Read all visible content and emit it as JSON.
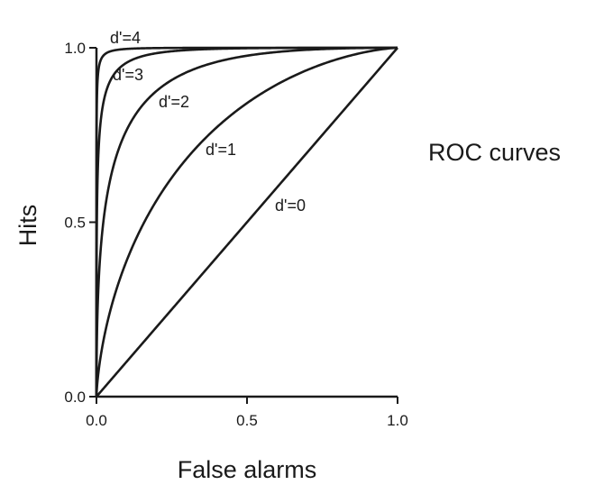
{
  "chart_data": {
    "type": "line",
    "title": "",
    "side_label": "ROC curves",
    "xlabel": "False alarms",
    "ylabel": "Hits",
    "xlim": [
      0,
      1
    ],
    "ylim": [
      0,
      1
    ],
    "x_ticks": [
      "0.0",
      "0.5",
      "1.0"
    ],
    "y_ticks": [
      "0.0",
      "0.5",
      "1.0"
    ],
    "grid": false,
    "legend": "none",
    "series": [
      {
        "name": "d'=0",
        "dprime": 0
      },
      {
        "name": "d'=1",
        "dprime": 1
      },
      {
        "name": "d'=2",
        "dprime": 2
      },
      {
        "name": "d'=3",
        "dprime": 3
      },
      {
        "name": "d'=4",
        "dprime": 4
      }
    ],
    "line_color": "#1a1a1a"
  }
}
